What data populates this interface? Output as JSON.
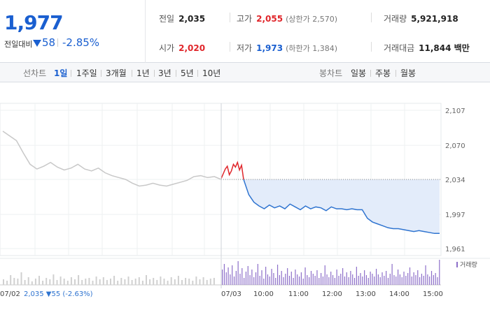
{
  "quote": {
    "current_price": "1,977",
    "change_label": "전일대비",
    "change_value": "58",
    "change_pct": "-2.85%",
    "prev_close_label": "전일",
    "prev_close": "2,035",
    "open_label": "시가",
    "open": "2,020",
    "high_label": "고가",
    "high": "2,055",
    "upper_limit": "(상한가 2,570)",
    "low_label": "저가",
    "low": "1,973",
    "lower_limit": "(하한가 1,384)",
    "volume_label": "거래량",
    "volume": "5,921,918",
    "value_label": "거래대금",
    "value": "11,844 백만"
  },
  "line_tabs": {
    "title": "선차트",
    "items": [
      "1일",
      "1주일",
      "3개월",
      "1년",
      "3년",
      "5년",
      "10년"
    ],
    "active": "1일"
  },
  "candle_tabs": {
    "title": "봉차트",
    "items": [
      "일봉",
      "주봉",
      "월봉"
    ]
  },
  "chart_data": {
    "type": "line",
    "y_ticks": [
      "2,107",
      "2,070",
      "2,034",
      "1,997",
      "1,961"
    ],
    "ylim": [
      1961,
      2107
    ],
    "x_labels": [
      "07/02",
      "07/03",
      "10:00",
      "11:00",
      "12:00",
      "13:00",
      "14:00",
      "15:00"
    ],
    "prev_close_line": 2034,
    "prev_day_footer": "07/02  2,035 ▼55 (-2.63%)",
    "volume_legend": "거래량",
    "series": [
      {
        "values": [
          2085,
          2080,
          2075,
          2062,
          2050,
          2045,
          2048,
          2052,
          2047,
          2044,
          2046,
          2050,
          2045,
          2043,
          2046,
          2041,
          2038,
          2036,
          2034,
          2030,
          2027,
          2028,
          2030,
          2028,
          2027,
          2029,
          2031,
          2033,
          2037,
          2038,
          2036,
          2037,
          2034
        ]
      },
      {
        "values": [
          2035,
          2040,
          2045,
          2048,
          2039,
          2043,
          2050,
          2047,
          2052,
          2044,
          2049,
          2034
        ]
      },
      {
        "values": [
          2034,
          2018,
          2010,
          2006,
          2003,
          2007,
          2004,
          2006,
          2003,
          2008,
          2005,
          2002,
          2006,
          2003,
          2005,
          2004,
          2001,
          2005,
          2003,
          2003,
          2002,
          2003,
          2002,
          2002,
          1993,
          1989,
          1987,
          1985,
          1983,
          1982,
          1982,
          1981,
          1980,
          1979,
          1980,
          1979,
          1978,
          1977,
          1977
        ]
      }
    ],
    "colors": {
      "prev_day": "#c8c8c8",
      "up": "#e0262b",
      "down": "#2f74d0",
      "fill": "#e3ecfa",
      "volume": "#8d6fc9"
    }
  }
}
